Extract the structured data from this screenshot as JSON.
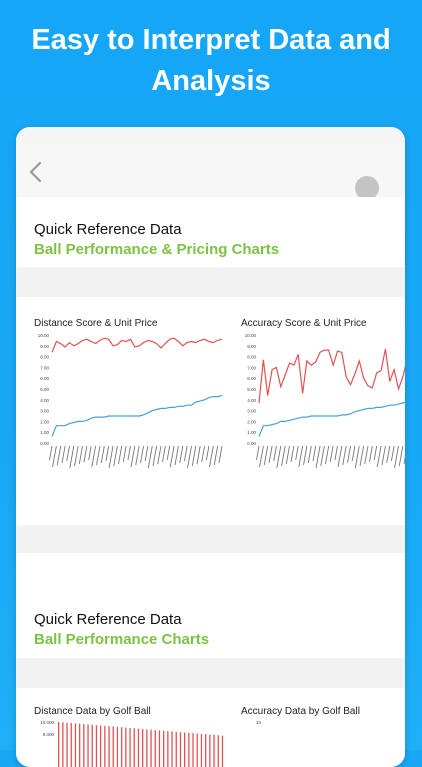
{
  "headline": {
    "line1": "Easy to Interpret Data and",
    "line2": "Analysis"
  },
  "nav": {
    "back_icon": "chevron-left-icon",
    "avatar_icon": "profile-avatar"
  },
  "section1": {
    "title": "Quick Reference Data",
    "subtitle": "Ball Performance & Pricing Charts"
  },
  "section2": {
    "title": "Quick Reference Data",
    "subtitle": "Ball Performance Charts"
  },
  "chart_data": [
    {
      "type": "line",
      "title": "Distance Score & Unit Price",
      "ylim": [
        0,
        10
      ],
      "yticks": [
        "0.00",
        "1.00",
        "2.00",
        "3.00",
        "4.00",
        "5.00",
        "6.00",
        "7.00",
        "8.00",
        "9.00",
        "10.00"
      ],
      "series": [
        {
          "color": "#e05252",
          "values": [
            8.4,
            9.4,
            9.2,
            8.9,
            9.3,
            9.0,
            9.2,
            9.5,
            9.6,
            9.4,
            9.2,
            9.5,
            9.7,
            9.6,
            9.0,
            9.1,
            9.5,
            9.4,
            9.6,
            8.9,
            9.0,
            9.3,
            9.5,
            9.4,
            9.2,
            8.8,
            9.2,
            9.6,
            9.7,
            9.4,
            9.0,
            9.3,
            9.4,
            9.3,
            9.5,
            9.6,
            9.4,
            9.3,
            9.5,
            9.6
          ]
        },
        {
          "color": "#4a9fe0",
          "values": [
            0.6,
            1.6,
            1.6,
            1.6,
            1.8,
            1.9,
            2.0,
            2.0,
            2.1,
            2.3,
            2.4,
            2.4,
            2.4,
            2.5,
            2.5,
            2.5,
            2.5,
            2.5,
            2.5,
            2.5,
            2.5,
            2.6,
            2.8,
            3.0,
            3.1,
            3.2,
            3.2,
            3.3,
            3.3,
            3.4,
            3.4,
            3.5,
            3.5,
            3.8,
            3.9,
            4.0,
            4.2,
            4.3,
            4.3,
            4.4
          ]
        }
      ]
    },
    {
      "type": "line",
      "title": "Accuracy Score & Unit Price",
      "ylim": [
        0,
        10
      ],
      "yticks": [
        "0.00",
        "1.00",
        "2.00",
        "3.00",
        "4.00",
        "5.00",
        "6.00",
        "7.00",
        "8.00",
        "9.00",
        "10.00"
      ],
      "series": [
        {
          "color": "#e05252",
          "values": [
            3.7,
            7.7,
            4.4,
            6.8,
            7.0,
            5.2,
            6.3,
            7.4,
            7.2,
            8.2,
            4.6,
            7.6,
            7.2,
            7.5,
            8.4,
            8.6,
            8.6,
            7.2,
            8.5,
            8.4,
            6.1,
            5.4,
            6.4,
            7.6,
            6.0,
            5.3,
            5.1,
            6.5,
            6.7,
            8.7,
            5.7,
            6.8,
            5.0,
            6.1,
            7.8,
            5.8,
            8.2,
            6.0,
            8.6,
            6.0
          ]
        },
        {
          "color": "#4a9fe0",
          "values": [
            0.6,
            1.6,
            1.6,
            1.7,
            1.8,
            2.0,
            2.0,
            2.1,
            2.2,
            2.3,
            2.4,
            2.4,
            2.5,
            2.5,
            2.5,
            2.5,
            2.5,
            2.5,
            2.5,
            2.6,
            2.6,
            2.7,
            2.9,
            3.0,
            3.1,
            3.2,
            3.2,
            3.3,
            3.3,
            3.4,
            3.5,
            3.5,
            3.6,
            3.7,
            3.8,
            3.9,
            4.0,
            4.0,
            4.1,
            4.2
          ]
        }
      ]
    },
    {
      "type": "bar",
      "title": "Distance Data by Golf Ball",
      "yticks": [
        "10.000",
        "9.000"
      ]
    },
    {
      "type": "bar",
      "title": "Accuracy Data by Golf Ball",
      "yticks": [
        "10"
      ]
    }
  ]
}
